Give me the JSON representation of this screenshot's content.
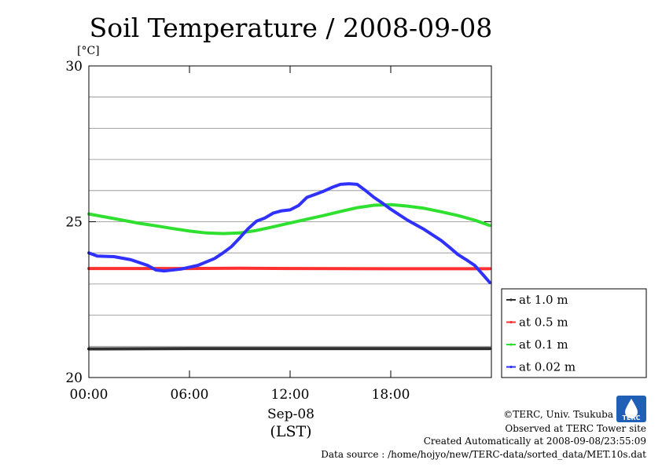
{
  "chart_data": {
    "type": "line",
    "title": "Soil Temperature / 2008-09-08",
    "ylabel": "[°C]",
    "xlabel_date": "Sep-08",
    "xlabel_tz": "(LST)",
    "xlim": [
      0,
      24
    ],
    "ylim": [
      20,
      30
    ],
    "x_ticks": [
      0,
      6,
      12,
      18
    ],
    "x_tick_labels": [
      "00:00",
      "06:00",
      "12:00",
      "18:00"
    ],
    "y_ticks": [
      20,
      25,
      30
    ],
    "y_tick_labels": [
      "20",
      "25",
      "30"
    ],
    "y_minor_step": 1,
    "grid": true,
    "legend_position": "right-bottom-outside",
    "series": [
      {
        "name": "at 1.0 m",
        "color": "#303030",
        "points": [
          [
            0,
            20.92
          ],
          [
            6,
            20.93
          ],
          [
            12,
            20.93
          ],
          [
            18,
            20.93
          ],
          [
            23.9,
            20.93
          ]
        ]
      },
      {
        "name": "at 0.5 m",
        "color": "#ff3030",
        "points": [
          [
            0,
            23.5
          ],
          [
            6,
            23.5
          ],
          [
            9,
            23.51
          ],
          [
            12,
            23.5
          ],
          [
            18,
            23.49
          ],
          [
            23.9,
            23.49
          ]
        ]
      },
      {
        "name": "at 0.1 m",
        "color": "#30e030",
        "points": [
          [
            0,
            25.25
          ],
          [
            1,
            25.15
          ],
          [
            2,
            25.05
          ],
          [
            3,
            24.95
          ],
          [
            4,
            24.87
          ],
          [
            5,
            24.78
          ],
          [
            6,
            24.7
          ],
          [
            7,
            24.64
          ],
          [
            8,
            24.62
          ],
          [
            9,
            24.64
          ],
          [
            10,
            24.72
          ],
          [
            11,
            24.84
          ],
          [
            12,
            24.96
          ],
          [
            13,
            25.08
          ],
          [
            14,
            25.2
          ],
          [
            15,
            25.33
          ],
          [
            16,
            25.45
          ],
          [
            17,
            25.53
          ],
          [
            18,
            25.55
          ],
          [
            19,
            25.5
          ],
          [
            20,
            25.43
          ],
          [
            21,
            25.32
          ],
          [
            22,
            25.2
          ],
          [
            23,
            25.05
          ],
          [
            23.9,
            24.88
          ]
        ]
      },
      {
        "name": "at 0.02 m",
        "color": "#3030ff",
        "points": [
          [
            0,
            24.0
          ],
          [
            0.5,
            23.9
          ],
          [
            1.5,
            23.88
          ],
          [
            2.5,
            23.78
          ],
          [
            3.5,
            23.6
          ],
          [
            4,
            23.45
          ],
          [
            4.5,
            23.42
          ],
          [
            5.5,
            23.48
          ],
          [
            6.5,
            23.6
          ],
          [
            7.5,
            23.82
          ],
          [
            8,
            24.0
          ],
          [
            8.5,
            24.2
          ],
          [
            9,
            24.48
          ],
          [
            9.5,
            24.78
          ],
          [
            10,
            25.02
          ],
          [
            10.5,
            25.12
          ],
          [
            11,
            25.28
          ],
          [
            11.5,
            25.35
          ],
          [
            12,
            25.38
          ],
          [
            12.5,
            25.52
          ],
          [
            13,
            25.78
          ],
          [
            13.5,
            25.88
          ],
          [
            14,
            25.98
          ],
          [
            14.5,
            26.1
          ],
          [
            15,
            26.2
          ],
          [
            15.5,
            26.22
          ],
          [
            16,
            26.2
          ],
          [
            16.5,
            26.0
          ],
          [
            17,
            25.78
          ],
          [
            17.5,
            25.6
          ],
          [
            18,
            25.4
          ],
          [
            19,
            25.05
          ],
          [
            20,
            24.75
          ],
          [
            21,
            24.4
          ],
          [
            21.5,
            24.18
          ],
          [
            22,
            23.95
          ],
          [
            22.5,
            23.78
          ],
          [
            23,
            23.6
          ],
          [
            23.5,
            23.3
          ],
          [
            23.9,
            23.05
          ]
        ]
      }
    ]
  },
  "credits": {
    "copyright": "©TERC, Univ. Tsukuba",
    "observed": "Observed at TERC Tower site",
    "created": "Created Automatically at 2008-09-08/23:55:09",
    "source": "Data source : /home/hojyo/new/TERC-data/sorted_data/MET.10s.dat"
  },
  "logo": {
    "text": "TERC",
    "color": "#1f5fb5"
  }
}
